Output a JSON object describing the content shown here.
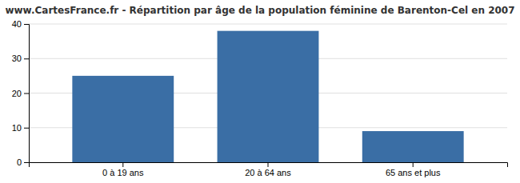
{
  "chart_data": {
    "type": "bar",
    "title": "www.CartesFrance.fr - Répartition par âge de la population féminine de Barenton-Cel en 2007",
    "categories": [
      "0 à 19 ans",
      "20 à 64 ans",
      "65 ans et plus"
    ],
    "values": [
      25,
      38,
      9
    ],
    "color": "#3a6ea5",
    "ylim": [
      0,
      40
    ],
    "yticks": [
      0,
      10,
      20,
      30,
      40
    ],
    "grid": true
  }
}
